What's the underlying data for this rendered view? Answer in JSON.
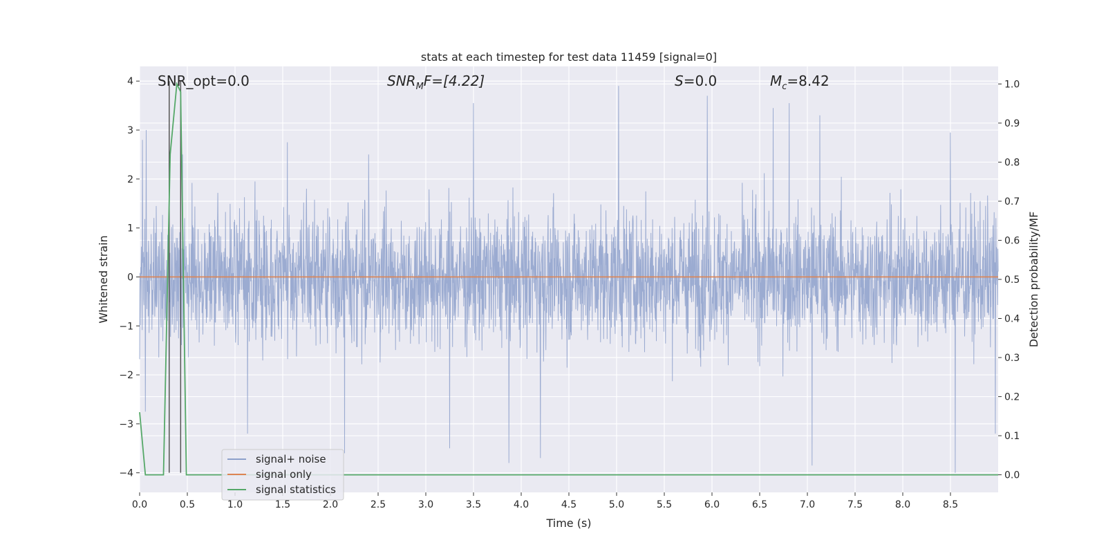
{
  "chart_data": {
    "type": "line",
    "title": "stats at each timestep for test data 11459 [signal=0]",
    "xlabel": "Time (s)",
    "ylabel_left": "Whitened strain",
    "ylabel_right": "Detection probability/MF",
    "xlim": [
      0.0,
      9.0
    ],
    "ylim_left": [
      -4.4,
      4.3
    ],
    "ylim_right": [
      -0.045,
      1.045
    ],
    "x_ticks": [
      "0.0",
      "0.5",
      "1.0",
      "1.5",
      "2.0",
      "2.5",
      "3.0",
      "3.5",
      "4.0",
      "4.5",
      "5.0",
      "5.5",
      "6.0",
      "6.5",
      "7.0",
      "7.5",
      "8.0",
      "8.5"
    ],
    "y_ticks_left": [
      "4",
      "3",
      "2",
      "1",
      "0",
      "−1",
      "−2",
      "−3",
      "−4"
    ],
    "y_ticks_right": [
      "1.0",
      "0.9",
      "0.8",
      "0.7",
      "0.6",
      "0.5",
      "0.4",
      "0.3",
      "0.2",
      "0.1",
      "0.0"
    ],
    "grid": true,
    "legend_position": "lower-left",
    "colors": {
      "background": "#eaeaf2",
      "grid": "#ffffff",
      "noise": "#8da0cb",
      "signal": "#dd8452",
      "statistics": "#55a868",
      "vlines": "#555555"
    },
    "annotations": {
      "snr_opt": "SNR_opt=0.0",
      "snr_mf_main": "SNR",
      "snr_mf_sub": "M",
      "snr_mf_rest": "F=[4.22]",
      "s_main": "S",
      "s_rest": "=0.0",
      "mc_main": "M",
      "mc_sub": "c",
      "mc_rest": "=8.42"
    },
    "series": [
      {
        "name": "signal+ noise",
        "axis": "left",
        "style": "dense noisy strain",
        "x_range": [
          0.0,
          9.0
        ],
        "envelope_typical": [
          -1.7,
          1.6
        ],
        "peaks": [
          {
            "x": 0.03,
            "y": 2.8
          },
          {
            "x": 0.07,
            "y": 3.0
          },
          {
            "x": 0.45,
            "y": 2.5
          },
          {
            "x": 1.13,
            "y": 3.07
          },
          {
            "x": 1.55,
            "y": 2.75
          },
          {
            "x": 2.4,
            "y": 2.5
          },
          {
            "x": 3.5,
            "y": 3.55
          },
          {
            "x": 5.02,
            "y": 3.9
          },
          {
            "x": 5.95,
            "y": 3.7
          },
          {
            "x": 6.64,
            "y": 3.45
          },
          {
            "x": 6.81,
            "y": 3.55
          },
          {
            "x": 7.13,
            "y": 3.3
          },
          {
            "x": 8.5,
            "y": 2.95
          }
        ],
        "troughs": [
          {
            "x": 0.06,
            "y": -2.75
          },
          {
            "x": 0.31,
            "y": -3.0
          },
          {
            "x": 1.13,
            "y": -3.2
          },
          {
            "x": 2.15,
            "y": -3.6
          },
          {
            "x": 3.25,
            "y": -3.5
          },
          {
            "x": 3.87,
            "y": -3.8
          },
          {
            "x": 4.2,
            "y": -3.7
          },
          {
            "x": 7.05,
            "y": -3.85
          },
          {
            "x": 8.55,
            "y": -4.0
          },
          {
            "x": 8.97,
            "y": -3.2
          }
        ]
      },
      {
        "name": "signal only",
        "axis": "left",
        "x": [
          0.0,
          9.0
        ],
        "y": [
          0.0,
          0.0
        ]
      },
      {
        "name": "signal statistics",
        "axis": "right",
        "x": [
          0.0,
          0.06,
          0.1,
          0.25,
          0.32,
          0.39,
          0.43,
          0.49,
          0.55,
          9.0
        ],
        "y": [
          0.16,
          0.0,
          0.0,
          0.0,
          0.82,
          1.0,
          0.98,
          0.0,
          0.0,
          0.0
        ]
      }
    ],
    "vlines": [
      0.31,
      0.43
    ]
  }
}
